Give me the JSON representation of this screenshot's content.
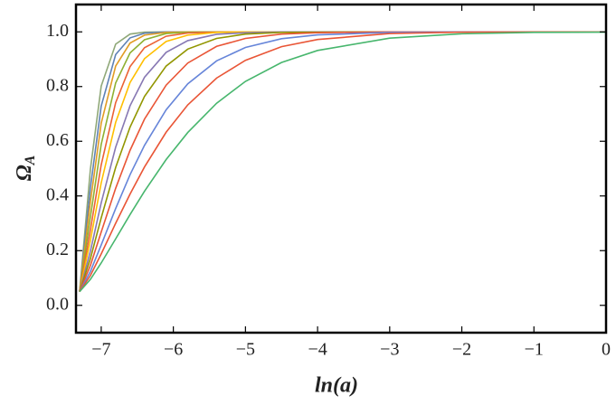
{
  "chart_data": {
    "type": "line",
    "xlabel": "ln(a)",
    "ylabel": "Ω",
    "ylabel_sub": "A",
    "x": [
      -7.3,
      -7.15,
      -7.0,
      -6.8,
      -6.6,
      -6.4,
      -6.1,
      -5.8,
      -5.4,
      -5.0,
      -4.5,
      -4.0,
      -3.0,
      -2.0,
      -1.0,
      0.0
    ],
    "xlim": [
      -7.35,
      0
    ],
    "ylim": [
      -0.1,
      1.1
    ],
    "xticks": [
      {
        "value": -7,
        "label": "−7"
      },
      {
        "value": -6,
        "label": "−6"
      },
      {
        "value": -5,
        "label": "−5"
      },
      {
        "value": -4,
        "label": "−4"
      },
      {
        "value": -3,
        "label": "−3"
      },
      {
        "value": -2,
        "label": "−2"
      },
      {
        "value": -1,
        "label": "−1"
      },
      0
    ],
    "yticks": [
      {
        "value": 0,
        "label": "0.0"
      },
      0.2,
      0.4,
      0.6,
      0.8,
      {
        "value": 1,
        "label": "1.0"
      }
    ],
    "series": [
      {
        "color": "#8fa878",
        "values": [
          0.05,
          0.498,
          0.802,
          0.955,
          0.992,
          0.999,
          1,
          1,
          1,
          1,
          1,
          1,
          1,
          1,
          1,
          1
        ]
      },
      {
        "color": "#5e81b5",
        "values": [
          0.05,
          0.43,
          0.729,
          0.917,
          0.978,
          0.995,
          1,
          1,
          1,
          1,
          1,
          1,
          1,
          1,
          1,
          1
        ]
      },
      {
        "color": "#e19c24",
        "values": [
          0.05,
          0.379,
          0.666,
          0.875,
          0.959,
          0.988,
          0.998,
          1,
          1,
          1,
          1,
          1,
          1,
          1,
          1,
          1
        ]
      },
      {
        "color": "#8fb032",
        "values": [
          0.05,
          0.324,
          0.589,
          0.813,
          0.923,
          0.971,
          0.994,
          0.999,
          1,
          1,
          1,
          1,
          1,
          1,
          1,
          1
        ]
      },
      {
        "color": "#eb6235",
        "values": [
          0.05,
          0.276,
          0.514,
          0.741,
          0.873,
          0.942,
          0.984,
          0.996,
          0.999,
          1,
          1,
          1,
          1,
          1,
          1,
          1
        ]
      },
      {
        "color": "#ffbf00",
        "values": [
          0.05,
          0.238,
          0.448,
          0.669,
          0.815,
          0.902,
          0.965,
          0.988,
          0.998,
          1,
          1,
          1,
          1,
          1,
          1,
          1
        ]
      },
      {
        "color": "#8778b3",
        "values": [
          0.05,
          0.198,
          0.375,
          0.578,
          0.73,
          0.834,
          0.925,
          0.968,
          0.991,
          0.997,
          1,
          1,
          1,
          1,
          1,
          1
        ]
      },
      {
        "color": "#929600",
        "values": [
          0.05,
          0.171,
          0.32,
          0.504,
          0.652,
          0.764,
          0.875,
          0.937,
          0.976,
          0.992,
          0.998,
          0.999,
          1,
          1,
          1,
          1
        ]
      },
      {
        "color": "#e95536",
        "values": [
          0.05,
          0.146,
          0.268,
          0.428,
          0.567,
          0.681,
          0.805,
          0.886,
          0.947,
          0.976,
          0.992,
          0.997,
          1,
          1,
          1,
          1
        ]
      },
      {
        "color": "#6685d9",
        "values": [
          0.05,
          0.124,
          0.221,
          0.354,
          0.478,
          0.585,
          0.715,
          0.81,
          0.894,
          0.943,
          0.975,
          0.989,
          0.998,
          1,
          1,
          1
        ]
      },
      {
        "color": "#e95536",
        "values": [
          0.05,
          0.109,
          0.188,
          0.3,
          0.407,
          0.506,
          0.633,
          0.733,
          0.831,
          0.896,
          0.946,
          0.972,
          0.994,
          0.999,
          1,
          1
        ]
      },
      {
        "color": "#47b66d",
        "values": [
          0.05,
          0.095,
          0.155,
          0.243,
          0.332,
          0.417,
          0.533,
          0.632,
          0.739,
          0.819,
          0.888,
          0.932,
          0.977,
          0.993,
          0.998,
          0.999
        ]
      }
    ]
  }
}
